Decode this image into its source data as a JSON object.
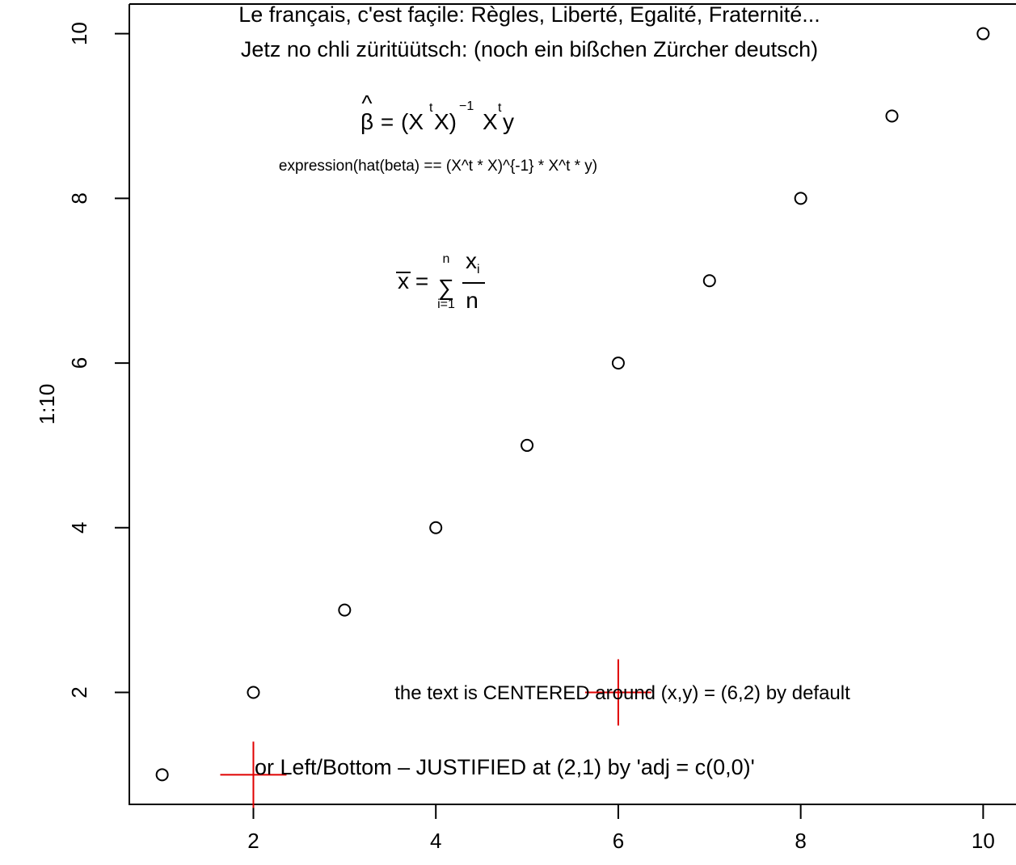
{
  "chart_data": {
    "type": "scatter",
    "x": [
      1,
      2,
      3,
      4,
      5,
      6,
      7,
      8,
      9,
      10
    ],
    "y": [
      1,
      2,
      3,
      4,
      5,
      6,
      7,
      8,
      9,
      10
    ],
    "xlabel": "",
    "ylabel": "1:10",
    "xlim": [
      0.64,
      10.36
    ],
    "ylim": [
      0.64,
      10.36
    ],
    "x_ticks": [
      2,
      4,
      6,
      8,
      10
    ],
    "y_ticks": [
      2,
      4,
      6,
      8,
      10
    ],
    "grid": false,
    "point_shape": "open-circle",
    "annotations": [
      {
        "id": "french",
        "text": "Le français, c'est façile: Règles, Liberté, Egalité, Fraternité..."
      },
      {
        "id": "zurich",
        "text": "Jetz no chli züritüütsch: (noch ein bißchen Zürcher deutsch)"
      },
      {
        "id": "expr",
        "text": "expression(hat(beta) == (X^t * X)^{-1} * X^t * y)"
      },
      {
        "id": "centered",
        "text": "the text is CENTERED around (x,y) = (6,2) by default"
      },
      {
        "id": "left",
        "text": "or Left/Bottom – JUSTIFIED at (2,1) by 'adj = c(0,0)'"
      }
    ],
    "math": {
      "beta_lhs": "β",
      "beta_hat": "^",
      "beta_eq": "=",
      "beta_rhs_1": "(X",
      "beta_t1": "t",
      "beta_rhs_2": "X)",
      "beta_inv": "−1",
      "beta_rhs_3": "X",
      "beta_t2": "t",
      "beta_rhs_4": "y",
      "xbar_lhs": "x",
      "xbar_eq": "=",
      "xbar_sum": "∑",
      "xbar_upper": "n",
      "xbar_lower": "i=1",
      "xbar_num": "x",
      "xbar_num_sub": "i",
      "xbar_den": "n"
    },
    "markers": [
      {
        "x": 6,
        "y": 2,
        "color": "#e00000"
      },
      {
        "x": 2,
        "y": 1,
        "color": "#e00000"
      }
    ]
  }
}
